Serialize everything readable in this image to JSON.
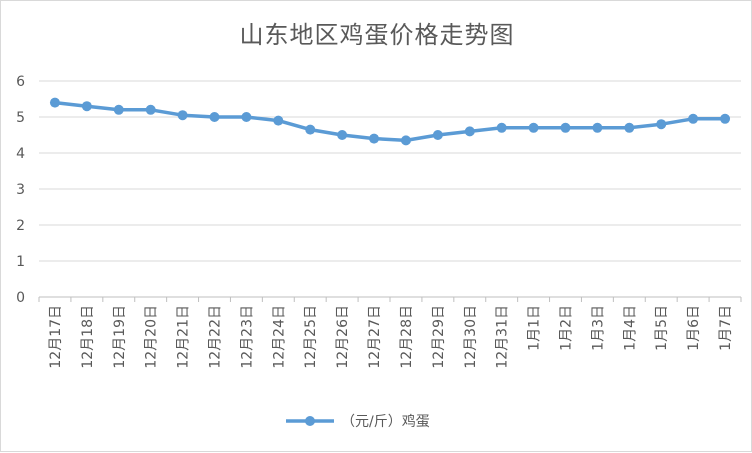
{
  "chart_data": {
    "type": "line",
    "title": "山东地区鸡蛋价格走势图",
    "categories": [
      "12月17日",
      "12月18日",
      "12月19日",
      "12月20日",
      "12月21日",
      "12月22日",
      "12月23日",
      "12月24日",
      "12月25日",
      "12月26日",
      "12月27日",
      "12月28日",
      "12月29日",
      "12月30日",
      "12月31日",
      "1月1日",
      "1月2日",
      "1月3日",
      "1月4日",
      "1月5日",
      "1月6日",
      "1月7日"
    ],
    "series": [
      {
        "name": "（元/斤）鸡蛋",
        "values": [
          5.4,
          5.3,
          5.2,
          5.2,
          5.05,
          5.0,
          5.0,
          4.9,
          4.65,
          4.5,
          4.4,
          4.35,
          4.5,
          4.6,
          4.7,
          4.7,
          4.7,
          4.7,
          4.7,
          4.8,
          4.95,
          4.95
        ]
      }
    ],
    "ylim": [
      0,
      6
    ],
    "yticks": [
      0,
      1,
      2,
      3,
      4,
      5,
      6
    ],
    "grid": true,
    "legend_position": "bottom",
    "colors": {
      "line": "#5b9bd5",
      "grid": "#d9d9d9",
      "text": "#595959"
    }
  }
}
